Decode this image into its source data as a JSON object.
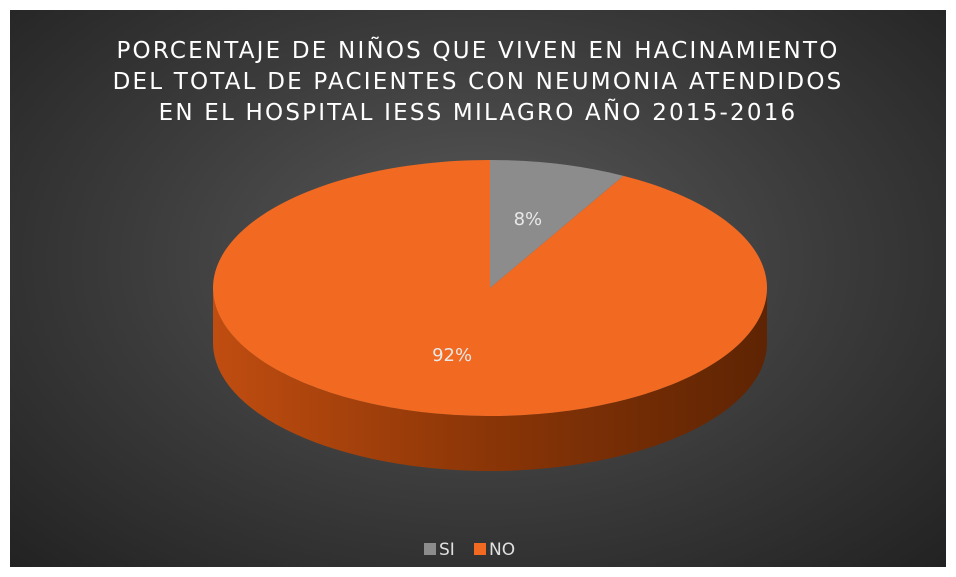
{
  "chart_data": {
    "type": "pie3d",
    "title": "PORCENTAJE DE NIÑOS QUE VIVEN EN HACINAMIENTO DEL TOTAL DE PACIENTES CON NEUMONIA ATENDIDOS EN EL HOSPITAL IESS MILAGRO AÑO 2015-2016",
    "categories": [
      "SI",
      "NO"
    ],
    "values": [
      8,
      92
    ],
    "value_labels": [
      "8%",
      "92%"
    ],
    "colors": [
      "#8c8c8c",
      "#f26a22"
    ],
    "legend": "bottom"
  }
}
